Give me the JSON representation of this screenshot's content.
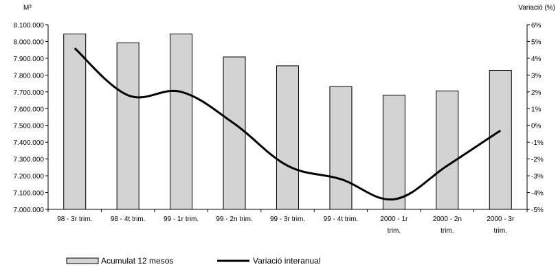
{
  "chart_data": {
    "type": "bar",
    "left_unit": "M³",
    "right_unit": "Variació (%)",
    "categories": [
      [
        "98 - 3r trim."
      ],
      [
        "98 - 4t trim."
      ],
      [
        "99 - 1r trim."
      ],
      [
        "99 - 2n trim."
      ],
      [
        "99 - 3r trim."
      ],
      [
        "99 - 4t trim."
      ],
      [
        "2000 - 1r",
        "trim."
      ],
      [
        "2000 - 2n",
        "trim."
      ],
      [
        "2000 - 3r",
        "trim."
      ]
    ],
    "ylim": [
      7000000,
      8100000
    ],
    "y_ticks": [
      7000000,
      7100000,
      7200000,
      7300000,
      7400000,
      7500000,
      7600000,
      7700000,
      7800000,
      7900000,
      8000000,
      8100000
    ],
    "y_tick_labels": [
      "7.000.000",
      "7.100.000",
      "7.200.000",
      "7.300.000",
      "7.400.000",
      "7.500.000",
      "7.600.000",
      "7.700.000",
      "7.800.000",
      "7.900.000",
      "8.000.000",
      "8.100.000"
    ],
    "y2lim": [
      -5,
      6
    ],
    "y2_ticks": [
      -5,
      -4,
      -3,
      -2,
      -1,
      0,
      1,
      2,
      3,
      4,
      5,
      6
    ],
    "y2_tick_labels": [
      "-5%",
      "-4%",
      "-3%",
      "-2%",
      "-1%",
      "0%",
      "1%",
      "2%",
      "3%",
      "4%",
      "5%",
      "6%"
    ],
    "series": [
      {
        "name": "Acumulat 12 mesos",
        "type": "bar",
        "axis": "left",
        "color": "#d3d3d3",
        "values": [
          8045000,
          7992000,
          8045000,
          7908000,
          7855000,
          7732000,
          7680000,
          7705000,
          7828000
        ]
      },
      {
        "name": "Variació interanual",
        "type": "line",
        "axis": "right",
        "color": "#000000",
        "values": [
          4.6,
          1.8,
          2.0,
          0.1,
          -2.4,
          -3.2,
          -4.4,
          -2.4,
          -0.3
        ]
      }
    ],
    "grid": false,
    "legend": "bottom-left"
  }
}
